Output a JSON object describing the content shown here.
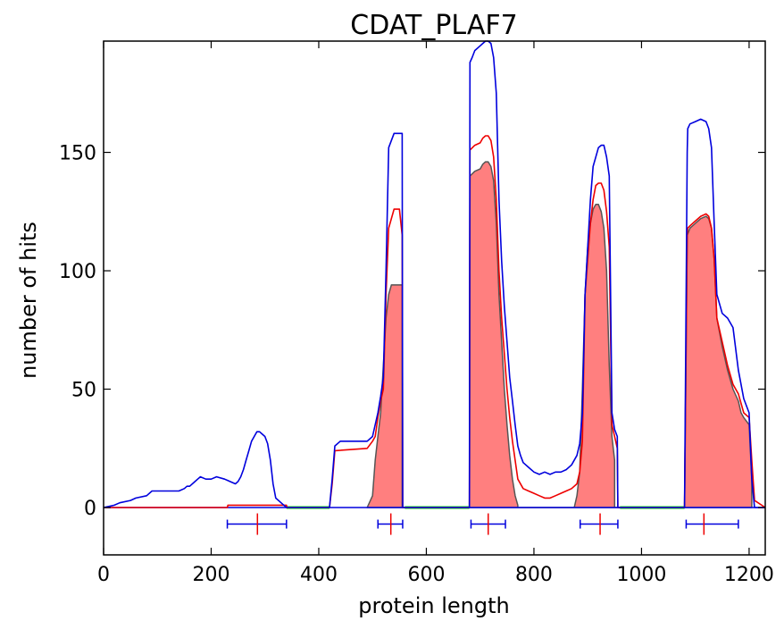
{
  "chart_data": {
    "type": "area",
    "title": "CDAT_PLAF7",
    "xlabel": "protein length",
    "ylabel": "number of hits",
    "xlim": [
      0,
      1230
    ],
    "ylim": [
      -20,
      197
    ],
    "xticks": [
      0,
      200,
      400,
      600,
      800,
      1000,
      1200
    ],
    "yticks": [
      0,
      50,
      100,
      150
    ],
    "grid": false,
    "colors": {
      "blue": "#0000dd",
      "red": "#ee0000",
      "fill": "#ff7f7f",
      "fill_edge": "#555555",
      "green": "#00ee00"
    },
    "series": [
      {
        "style": "blue-line",
        "x": [
          0,
          20,
          30,
          50,
          60,
          80,
          90,
          110,
          140,
          150,
          155,
          160,
          170,
          175,
          180,
          190,
          200,
          210,
          225,
          235,
          245,
          250,
          255,
          260,
          265,
          270,
          275,
          280,
          285,
          290,
          295,
          300,
          305,
          310,
          315,
          320,
          330,
          340,
          420,
          425,
          430,
          440,
          490,
          500,
          510,
          515,
          520,
          525,
          530,
          540,
          550,
          555,
          556,
          560,
          600,
          680,
          681,
          685,
          690,
          700,
          705,
          710,
          715,
          720,
          725,
          730,
          735,
          740,
          745,
          750,
          755,
          760,
          765,
          770,
          775,
          780,
          790,
          800,
          810,
          820,
          830,
          840,
          850,
          860,
          870,
          880,
          885,
          890,
          895,
          900,
          905,
          910,
          915,
          920,
          925,
          930,
          935,
          940,
          945,
          950,
          955,
          956,
          960,
          1080,
          1085,
          1086,
          1090,
          1100,
          1110,
          1120,
          1125,
          1130,
          1135,
          1140,
          1150,
          1160,
          1170,
          1180,
          1185,
          1190,
          1200,
          1205,
          1210,
          1230
        ],
        "y": [
          0,
          1,
          2,
          3,
          4,
          5,
          7,
          7,
          7,
          8,
          9,
          9,
          11,
          12,
          13,
          12,
          12,
          13,
          12,
          11,
          10,
          11,
          13,
          16,
          20,
          24,
          28,
          30,
          32,
          32,
          31,
          30,
          27,
          20,
          10,
          4,
          2,
          0,
          0,
          12,
          26,
          28,
          28,
          30,
          40,
          47,
          55,
          100,
          152,
          158,
          158,
          158,
          0,
          0,
          0,
          0,
          188,
          190,
          193,
          195,
          196,
          197,
          197,
          196,
          190,
          175,
          130,
          104,
          85,
          70,
          55,
          45,
          35,
          26,
          22,
          19,
          17,
          15,
          14,
          15,
          14,
          15,
          15,
          16,
          18,
          22,
          27,
          40,
          90,
          110,
          130,
          144,
          148,
          152,
          153,
          153,
          148,
          140,
          40,
          33,
          30,
          0,
          0,
          0,
          150,
          160,
          162,
          163,
          164,
          163,
          160,
          152,
          120,
          90,
          82,
          80,
          76,
          58,
          52,
          46,
          40,
          12,
          0,
          0
        ]
      },
      {
        "style": "red-line",
        "x": [
          0,
          230,
          231,
          340,
          341,
          420,
          425,
          430,
          490,
          500,
          505,
          510,
          515,
          520,
          525,
          530,
          540,
          550,
          555,
          556,
          560,
          600,
          680,
          681,
          690,
          700,
          705,
          710,
          715,
          720,
          725,
          730,
          735,
          740,
          745,
          750,
          755,
          760,
          765,
          770,
          780,
          790,
          800,
          810,
          820,
          830,
          840,
          850,
          860,
          870,
          880,
          885,
          890,
          895,
          900,
          905,
          910,
          915,
          920,
          925,
          930,
          935,
          940,
          945,
          950,
          955,
          956,
          960,
          1080,
          1085,
          1086,
          1090,
          1100,
          1110,
          1120,
          1125,
          1130,
          1135,
          1140,
          1150,
          1160,
          1170,
          1180,
          1185,
          1190,
          1200,
          1205,
          1210,
          1230
        ],
        "y": [
          0,
          0,
          1,
          1,
          0,
          0,
          10,
          24,
          25,
          28,
          30,
          38,
          45,
          50,
          90,
          118,
          126,
          126,
          115,
          0,
          0,
          0,
          0,
          151,
          153,
          154,
          156,
          157,
          157,
          155,
          148,
          130,
          100,
          80,
          65,
          50,
          38,
          28,
          20,
          12,
          8,
          7,
          6,
          5,
          4,
          4,
          5,
          6,
          7,
          8,
          10,
          15,
          28,
          90,
          105,
          120,
          130,
          136,
          137,
          137,
          134,
          125,
          110,
          35,
          30,
          25,
          0,
          0,
          0,
          115,
          118,
          119,
          121,
          123,
          124,
          123,
          118,
          105,
          80,
          70,
          60,
          52,
          48,
          44,
          40,
          38,
          20,
          3,
          0
        ]
      },
      {
        "style": "filled-area",
        "x": [
          490,
          500,
          505,
          510,
          515,
          520,
          525,
          530,
          535,
          540,
          550,
          555,
          555,
          680,
          681,
          690,
          700,
          705,
          710,
          715,
          720,
          725,
          730,
          735,
          740,
          745,
          750,
          755,
          760,
          765,
          770,
          770,
          875,
          880,
          885,
          890,
          895,
          900,
          905,
          910,
          915,
          920,
          925,
          930,
          935,
          940,
          945,
          950,
          950,
          1080,
          1085,
          1090,
          1100,
          1110,
          1120,
          1125,
          1130,
          1135,
          1140,
          1150,
          1160,
          1170,
          1180,
          1185,
          1190,
          1200,
          1205,
          1205
        ],
        "y": [
          0,
          5,
          20,
          30,
          40,
          60,
          80,
          90,
          94,
          94,
          94,
          94,
          0,
          0,
          140,
          142,
          143,
          145,
          146,
          146,
          144,
          138,
          120,
          90,
          70,
          50,
          35,
          22,
          12,
          5,
          1,
          0,
          0,
          5,
          15,
          50,
          90,
          110,
          120,
          126,
          128,
          128,
          125,
          118,
          100,
          60,
          30,
          20,
          0,
          0,
          115,
          118,
          120,
          122,
          123,
          122,
          118,
          105,
          80,
          68,
          58,
          50,
          45,
          40,
          38,
          35,
          12,
          0
        ]
      },
      {
        "style": "green-segments",
        "segments": [
          [
            340,
            420
          ],
          [
            560,
            680
          ],
          [
            960,
            1080
          ]
        ]
      }
    ],
    "markers": [
      {
        "start": 230,
        "end": 340,
        "center": 286
      },
      {
        "start": 510,
        "end": 556,
        "center": 534
      },
      {
        "start": 683,
        "end": 747,
        "center": 715
      },
      {
        "start": 886,
        "end": 956,
        "center": 923
      },
      {
        "start": 1083,
        "end": 1180,
        "center": 1116
      }
    ]
  }
}
